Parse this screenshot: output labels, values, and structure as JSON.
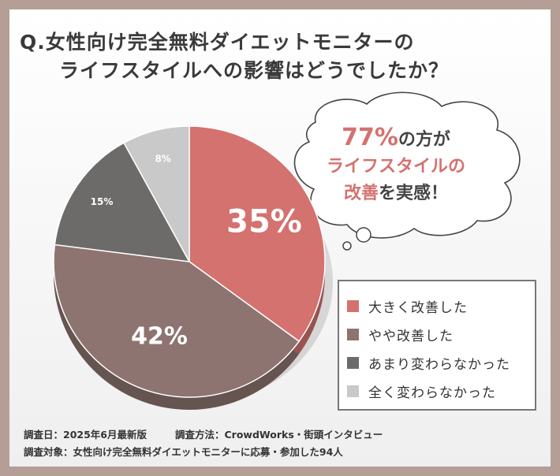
{
  "title": {
    "line1": "Q.女性向け完全無料ダイエットモニターの",
    "line2": "ライフスタイルへの影響はどうでしたか？"
  },
  "callout": {
    "percent": "77%",
    "line1_suffix": "の方が",
    "line2": "ライフスタイルの",
    "line3_accent": "改善",
    "line3_suffix": "を実感！"
  },
  "colors": {
    "accent": "#d4726f",
    "border": "#b59e96"
  },
  "chart_data": {
    "type": "pie",
    "start_angle_deg": 0,
    "direction": "clockwise",
    "slices": [
      {
        "label": "大きく改善した",
        "value": 35,
        "display": "35%",
        "color": "#d4726f"
      },
      {
        "label": "やや改善した",
        "value": 42,
        "display": "42%",
        "color": "#8d7470"
      },
      {
        "label": "あまり変わらなかった",
        "value": 15,
        "display": "15%",
        "color": "#6d6a6a"
      },
      {
        "label": "全く変わらなかった",
        "value": 8,
        "display": "8%",
        "color": "#c9c9c9"
      }
    ],
    "legend_position": "bottom-right"
  },
  "footer": {
    "date": "調査日：2025年6月最新版",
    "method": "調査方法：CrowdWorks・街頭インタビュー",
    "target": "調査対象：女性向け完全無料ダイエットモニターに応募・参加した94人"
  }
}
